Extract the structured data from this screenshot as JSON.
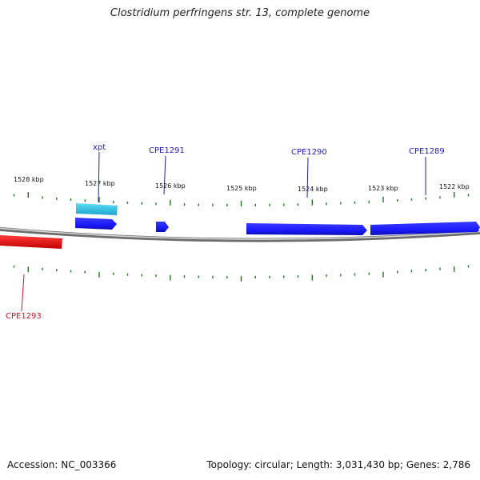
{
  "title": "Clostridium perfringens str. 13, complete genome",
  "footer": {
    "accession": "Accession: NC_003366",
    "summary": "Topology: circular; Length: 3,031,430 bp; Genes: 2,786"
  },
  "colors": {
    "forward_gene": "#1a1aff",
    "highlight_gene": "#29c6ea",
    "reverse_gene": "#ff1a1a",
    "tick": "#1e7a1e",
    "backbone": "#8a8a8a",
    "forward_label": "#1f1fb4",
    "reverse_label": "#c0152a"
  },
  "ruler_labels": [
    "1528 kbp",
    "1527 kbp",
    "1526 kbp",
    "1525 kbp",
    "1524 kbp",
    "1523 kbp",
    "1522 kbp"
  ],
  "gene_labels": {
    "xpt": "xpt",
    "cpe1291": "CPE1291",
    "cpe1290": "CPE1290",
    "cpe1289": "CPE1289",
    "cpe1293": "CPE1293"
  }
}
